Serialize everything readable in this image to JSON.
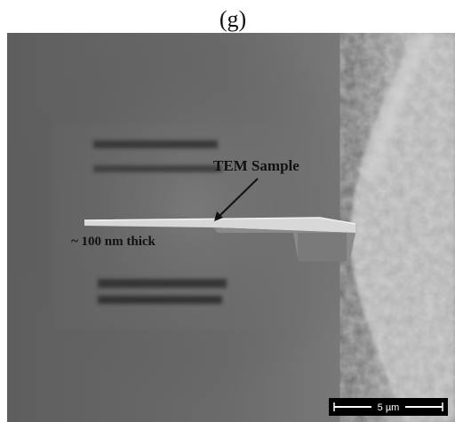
{
  "panel_label": "(g)",
  "annotations": {
    "sample": "TEM Sample",
    "thickness": "~ 100 nm thick"
  },
  "scale_bar": {
    "label": "5 µm"
  }
}
